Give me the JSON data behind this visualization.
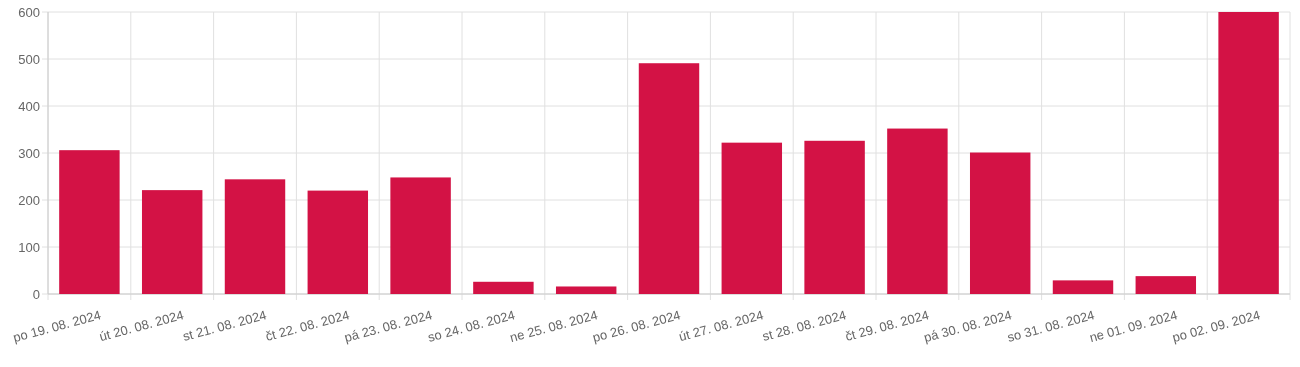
{
  "chart_data": {
    "type": "bar",
    "categories": [
      "po 19. 08. 2024",
      "út 20. 08. 2024",
      "st 21. 08. 2024",
      "čt 22. 08. 2024",
      "pá 23. 08. 2024",
      "so 24. 08. 2024",
      "ne 25. 08. 2024",
      "po 26. 08. 2024",
      "út 27. 08. 2024",
      "st 28. 08. 2024",
      "čt 29. 08. 2024",
      "pá 30. 08. 2024",
      "so 31. 08. 2024",
      "ne 01. 09. 2024",
      "po 02. 09. 2024"
    ],
    "values": [
      306,
      221,
      244,
      220,
      248,
      26,
      16,
      491,
      322,
      326,
      352,
      301,
      29,
      38,
      600
    ],
    "color": "#d31245",
    "ylim": [
      0,
      600
    ],
    "yticks": [
      0,
      100,
      200,
      300,
      400,
      500,
      600
    ],
    "grid": true
  }
}
